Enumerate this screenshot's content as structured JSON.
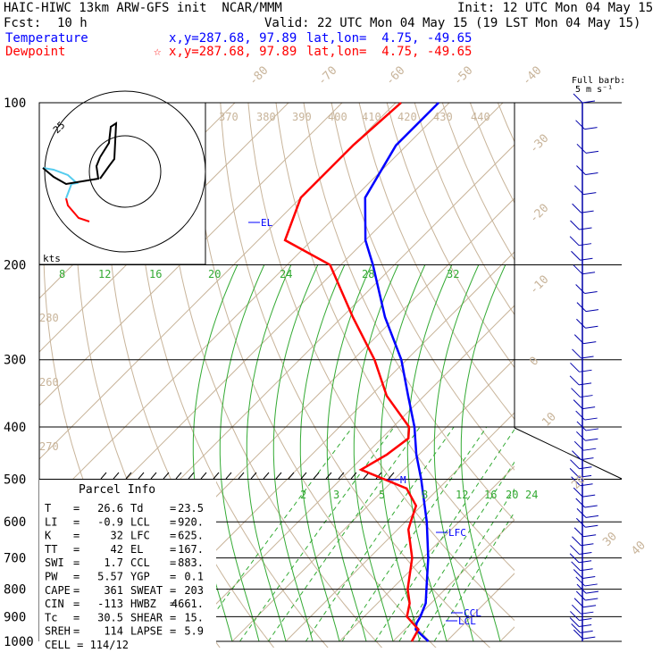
{
  "header": {
    "model_line": "HAIC-HIWC 13km ARW-GFS init  NCAR/MMM",
    "init_line": "Init: 12 UTC Mon 04 May 15",
    "fcst_label": "Fcst:",
    "fcst_value": "10 h",
    "valid_line": "Valid: 22 UTC Mon 04 May 15 (19 LST Mon 04 May 15)"
  },
  "legend": {
    "temperature_label": "Temperature",
    "temperature_xy": "x,y=287.68, 97.89",
    "temperature_latlon": "lat,lon=  4.75, -49.65",
    "dewpoint_label": "Dewpoint",
    "dewpoint_xy": "x,y=287.68, 97.89",
    "dewpoint_latlon": "lat,lon=  4.75, -49.65",
    "temperature_color": "#0000ff",
    "dewpoint_color": "#ff0000"
  },
  "barb_key": {
    "line1": "Full barb:",
    "line2": "5 m s⁻¹"
  },
  "hodograph_label": "kts",
  "hodograph_ring_label": "25",
  "parcel": {
    "title": "Parcel Info",
    "rows": [
      {
        "k1": "T  ",
        "v1": "26.6",
        "k2": "Td ",
        "v2": "23.5"
      },
      {
        "k1": "LI ",
        "v1": "-0.9",
        "k2": "LCL",
        "v2": "920."
      },
      {
        "k1": "K  ",
        "v1": "32",
        "k2": "LFC",
        "v2": "625."
      },
      {
        "k1": "TT ",
        "v1": "42",
        "k2": "EL ",
        "v2": "167."
      },
      {
        "k1": "SWI",
        "v1": "1.7",
        "k2": "CCL",
        "v2": "883."
      },
      {
        "k1": "PW ",
        "v1": "5.57",
        "k2": "YGP",
        "v2": "0.1"
      },
      {
        "k1": "CAPE",
        "v1": "361",
        "k2": "SWEAT",
        "v2": "203"
      },
      {
        "k1": "CIN",
        "v1": "-113",
        "k2": "HWBZ",
        "v2": "4661."
      },
      {
        "k1": "Tc ",
        "v1": "30.5",
        "k2": "SHEAR",
        "v2": "15."
      },
      {
        "k1": "SREH",
        "v1": "114",
        "k2": "LAPSE",
        "v2": "5.9"
      }
    ],
    "cell_line": "CELL = 114/12"
  },
  "chart_data": {
    "type": "line",
    "pressure_labels": [
      "100",
      "200",
      "300",
      "400",
      "500",
      "600",
      "700",
      "800",
      "900",
      "1000"
    ],
    "pressure_levels": [
      100,
      200,
      300,
      400,
      500,
      600,
      700,
      800,
      900,
      1000
    ],
    "isotherm_labels": [
      "-80",
      "-70",
      "-60",
      "-50",
      "-40",
      "-30",
      "-20",
      "-10",
      "0",
      "10",
      "20",
      "30",
      "40"
    ],
    "dry_adiabat_labels": [
      "370",
      "380",
      "390",
      "400",
      "410",
      "420",
      "430",
      "440",
      "280",
      "260",
      "270"
    ],
    "mixing_ratio_upper_labels": [
      "8",
      "12",
      "16",
      "20",
      "24",
      "28",
      "32"
    ],
    "mixing_ratio_lower_labels": [
      "2",
      "3",
      "5",
      "8",
      "12",
      "16",
      "20",
      "24"
    ],
    "level_labels": [
      "EL",
      "LFC",
      "CCL",
      "LCL",
      "M"
    ],
    "series": [
      {
        "name": "Temperature",
        "color": "#0000ff",
        "profile": [
          [
            1000,
            26.6
          ],
          [
            950,
            22
          ],
          [
            925,
            21
          ],
          [
            900,
            20.5
          ],
          [
            850,
            19
          ],
          [
            800,
            16.5
          ],
          [
            700,
            11
          ],
          [
            600,
            4
          ],
          [
            500,
            -5
          ],
          [
            450,
            -10.5
          ],
          [
            400,
            -16
          ],
          [
            350,
            -23
          ],
          [
            300,
            -31
          ],
          [
            250,
            -42
          ],
          [
            200,
            -54
          ],
          [
            180,
            -60
          ],
          [
            150,
            -68
          ],
          [
            120,
            -72
          ],
          [
            100,
            -72
          ]
        ]
      },
      {
        "name": "Dewpoint",
        "color": "#ff0000",
        "profile": [
          [
            1000,
            23.5
          ],
          [
            950,
            22.5
          ],
          [
            900,
            18
          ],
          [
            850,
            16
          ],
          [
            800,
            13
          ],
          [
            700,
            8
          ],
          [
            620,
            2
          ],
          [
            600,
            1
          ],
          [
            560,
            -1
          ],
          [
            520,
            -6
          ],
          [
            480,
            -18
          ],
          [
            450,
            -16
          ],
          [
            420,
            -15
          ],
          [
            400,
            -17
          ],
          [
            350,
            -27
          ],
          [
            300,
            -36
          ],
          [
            250,
            -48
          ],
          [
            200,
            -62
          ],
          [
            180,
            -75
          ],
          [
            150,
            -80
          ],
          [
            120,
            -80
          ],
          [
            100,
            -79
          ]
        ]
      }
    ],
    "wind_barb_axis": "pressure",
    "ylim": [
      1000,
      100
    ],
    "xlim": [
      -40,
      40
    ]
  }
}
